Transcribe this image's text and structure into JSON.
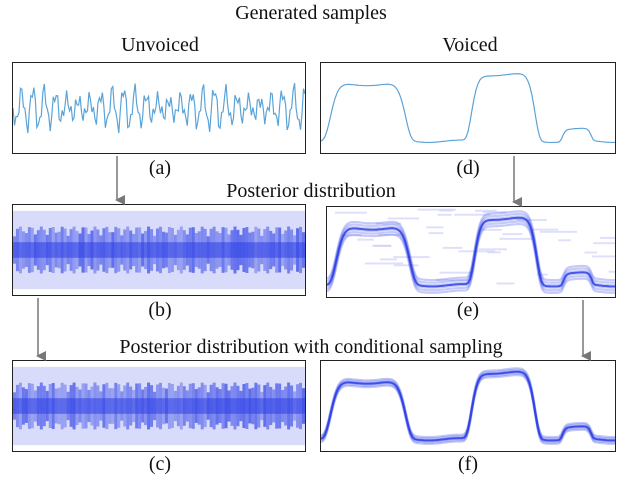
{
  "titles": {
    "top": "Generated samples",
    "middle": "Posterior distribution",
    "bottom": "Posterior distribution with conditional sampling"
  },
  "columns": {
    "left": "Unvoiced",
    "right": "Voiced"
  },
  "labels": {
    "a": "(a)",
    "b": "(b)",
    "c": "(c)",
    "d": "(d)",
    "e": "(e)",
    "f": "(f)"
  },
  "colors": {
    "waveform": "#5aa3d8",
    "posterior": "#2b3ee6",
    "posterior_light": "#c8ccf6",
    "arrow": "#777777",
    "border": "#222222"
  }
}
